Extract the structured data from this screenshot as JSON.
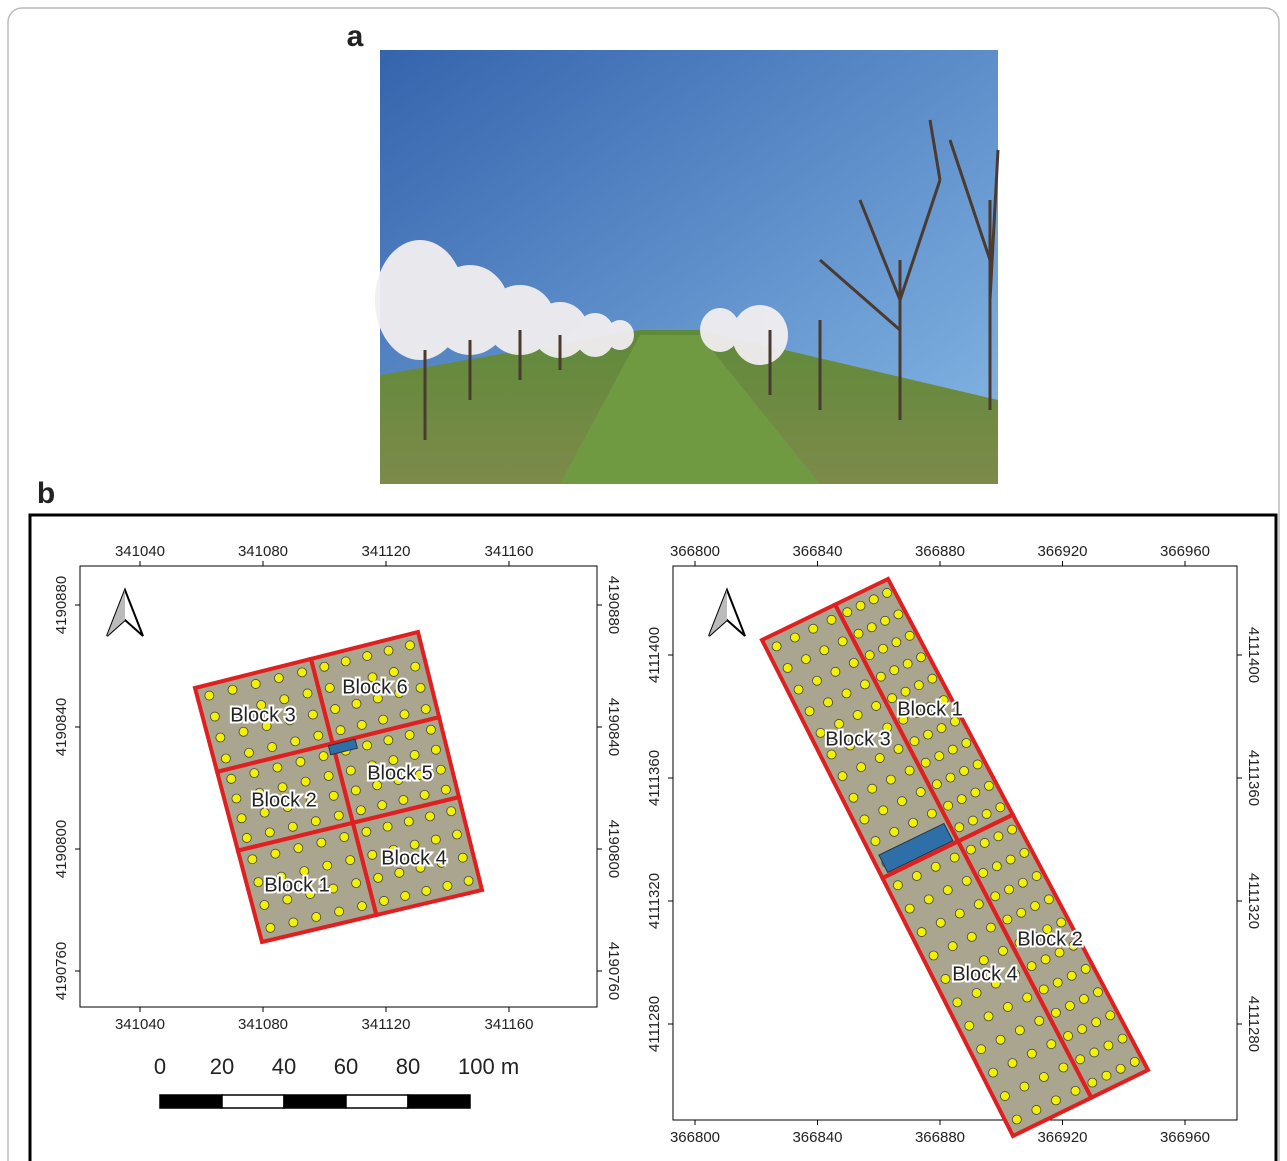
{
  "panel_a": {
    "label": "a"
  },
  "panel_b": {
    "label": "b",
    "maps": [
      {
        "x_ticks": [
          "341040",
          "341080",
          "341120",
          "341160"
        ],
        "y_ticks": [
          "4190880",
          "4190840",
          "4190800",
          "4190760"
        ],
        "blocks": [
          {
            "label": "Block 3"
          },
          {
            "label": "Block 6"
          },
          {
            "label": "Block 2"
          },
          {
            "label": "Block 5"
          },
          {
            "label": "Block 1"
          },
          {
            "label": "Block 4"
          }
        ]
      },
      {
        "x_ticks": [
          "366800",
          "366840",
          "366880",
          "366920",
          "366960"
        ],
        "y_ticks": [
          "4111400",
          "4111360",
          "4111320",
          "4111280"
        ],
        "blocks": [
          {
            "label": "Block 3"
          },
          {
            "label": "Block 1"
          },
          {
            "label": "Block 4"
          },
          {
            "label": "Block 2"
          }
        ]
      }
    ],
    "scale_bar": {
      "labels": [
        "0",
        "20",
        "40",
        "60",
        "80",
        "100 m"
      ]
    }
  }
}
